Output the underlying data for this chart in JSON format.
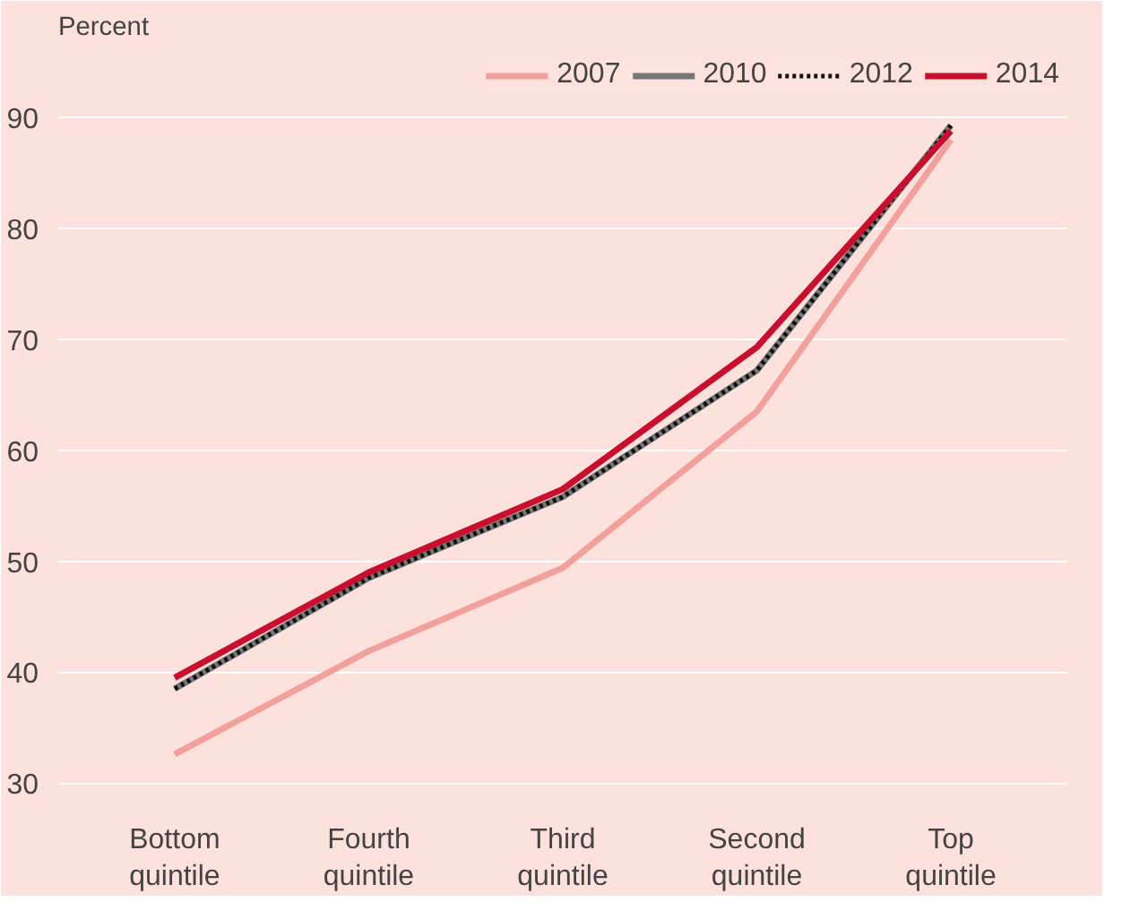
{
  "chart_data": {
    "type": "line",
    "ylabel": "Percent",
    "categories": [
      "Bottom\nquintile",
      "Fourth\nquintile",
      "Third\nquintile",
      "Second\nquintile",
      "Top\nquintile"
    ],
    "series": [
      {
        "name": "2007",
        "color": "#f2a09c",
        "line_style": "solid",
        "values": [
          32.6,
          41.9,
          49.4,
          63.5,
          88
        ]
      },
      {
        "name": "2010",
        "color": "#777777",
        "line_style": "solid",
        "values": [
          38.5,
          48.5,
          55.8,
          67.2,
          89.3
        ]
      },
      {
        "name": "2012",
        "color": "#111111",
        "line_style": "dotted",
        "values": [
          38.5,
          48.5,
          55.8,
          67.2,
          89.3
        ]
      },
      {
        "name": "2014",
        "color": "#c8102e",
        "line_style": "solid",
        "values": [
          39.5,
          49,
          56.5,
          69.3,
          88.8
        ]
      }
    ],
    "ylim": [
      28,
      96
    ],
    "yticks": [
      30,
      40,
      50,
      60,
      70,
      80,
      90
    ],
    "grid": "y",
    "legend": "top right",
    "marker": "none"
  }
}
